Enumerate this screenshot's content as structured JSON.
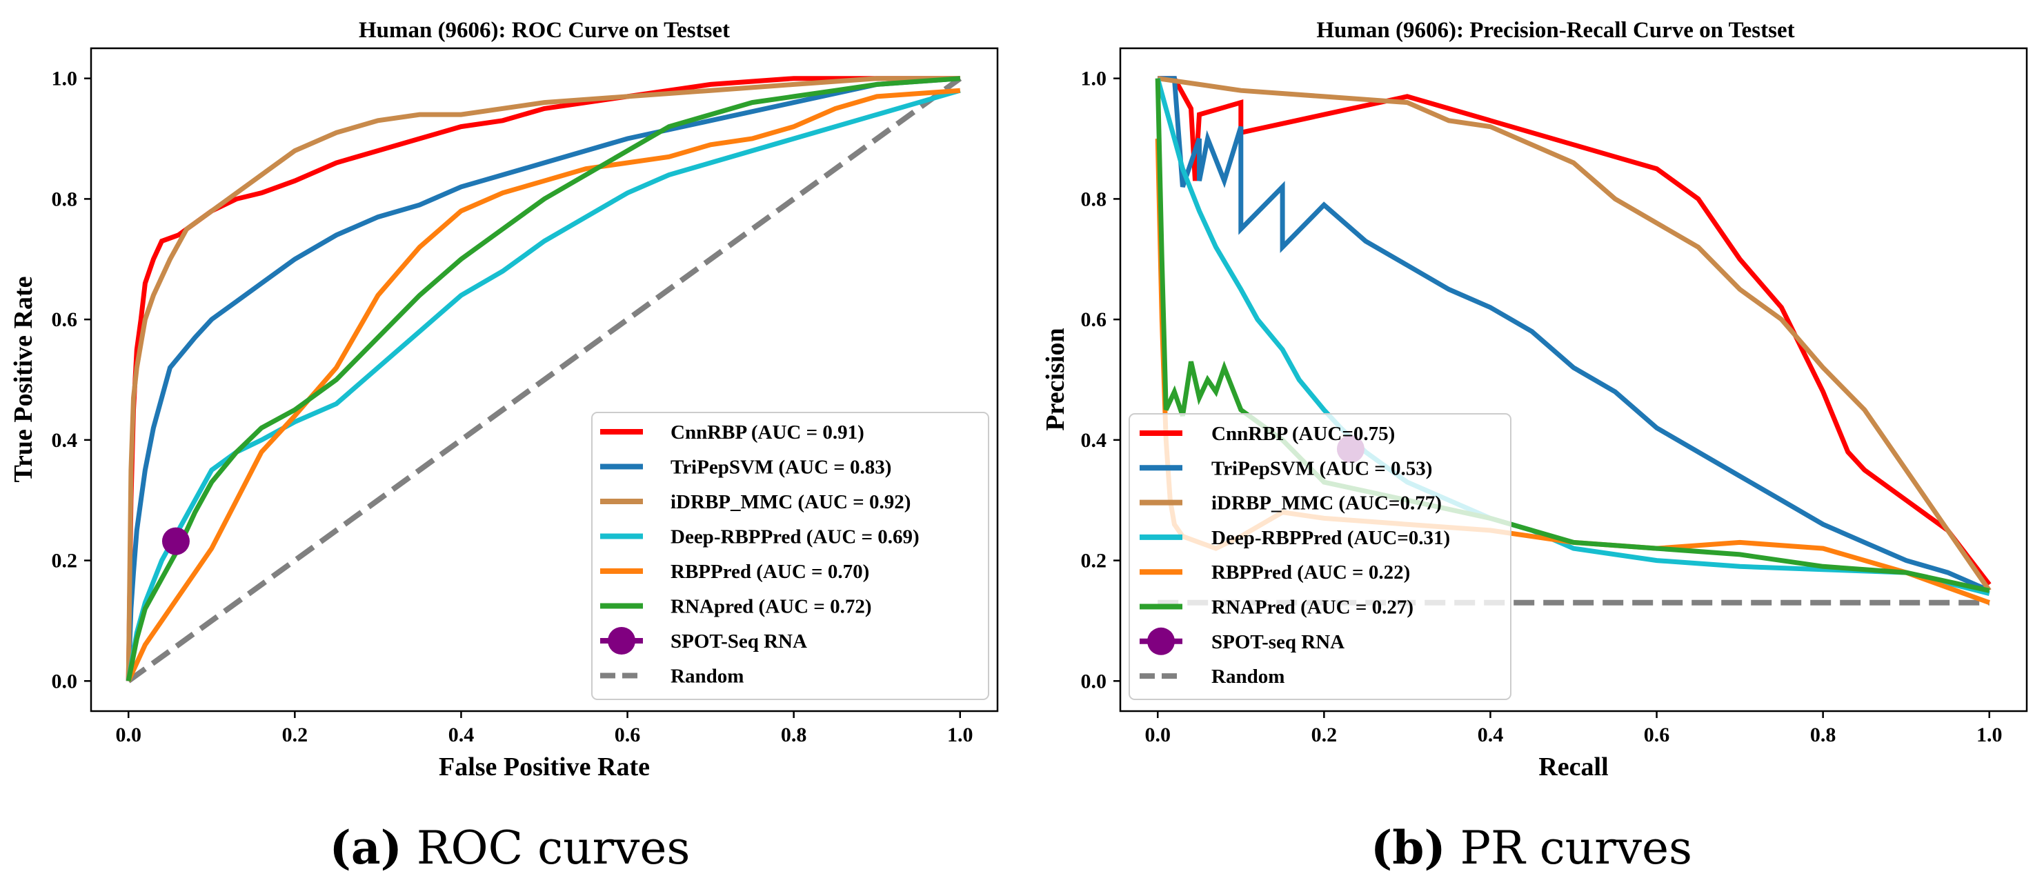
{
  "chart_data": [
    {
      "type": "line",
      "title": "Human (9606): ROC Curve on Testset",
      "xlabel": "False Positive Rate",
      "ylabel": "True Positive Rate",
      "xlim": [
        -0.045,
        1.045
      ],
      "ylim": [
        -0.05,
        1.05
      ],
      "xticks": [
        0.0,
        0.2,
        0.4,
        0.6,
        0.8,
        1.0
      ],
      "xtick_labels": [
        "0.0",
        "0.2",
        "0.4",
        "0.6",
        "0.8",
        "1.0"
      ],
      "yticks": [
        0.0,
        0.2,
        0.4,
        0.6,
        0.8,
        1.0
      ],
      "ytick_labels": [
        "0.0",
        "0.2",
        "0.4",
        "0.6",
        "0.8",
        "1.0"
      ],
      "legend_position": "lower-right",
      "caption": {
        "letter": "(a)",
        "text": " ROC curves"
      },
      "series": [
        {
          "name": "CnnRBP (AUC = 0.91)",
          "color": "#ff0000",
          "x": [
            0,
            0.003,
            0.006,
            0.01,
            0.015,
            0.02,
            0.03,
            0.04,
            0.06,
            0.08,
            0.1,
            0.13,
            0.16,
            0.2,
            0.25,
            0.3,
            0.35,
            0.4,
            0.45,
            0.5,
            0.6,
            0.7,
            0.8,
            0.85,
            0.9,
            1.0
          ],
          "y": [
            0,
            0.3,
            0.45,
            0.55,
            0.6,
            0.66,
            0.7,
            0.73,
            0.74,
            0.76,
            0.78,
            0.8,
            0.81,
            0.83,
            0.86,
            0.88,
            0.9,
            0.92,
            0.93,
            0.95,
            0.97,
            0.99,
            1.0,
            1.0,
            1.0,
            1.0
          ]
        },
        {
          "name": "TriPepSVM (AUC = 0.83)",
          "color": "#1f77b4",
          "x": [
            0,
            0.003,
            0.006,
            0.01,
            0.015,
            0.02,
            0.03,
            0.05,
            0.08,
            0.1,
            0.13,
            0.16,
            0.2,
            0.25,
            0.3,
            0.35,
            0.4,
            0.45,
            0.5,
            0.55,
            0.6,
            0.7,
            0.8,
            0.9,
            1.0
          ],
          "y": [
            0,
            0.12,
            0.18,
            0.25,
            0.3,
            0.35,
            0.42,
            0.52,
            0.57,
            0.6,
            0.63,
            0.66,
            0.7,
            0.74,
            0.77,
            0.79,
            0.82,
            0.84,
            0.86,
            0.88,
            0.9,
            0.93,
            0.96,
            0.99,
            1.0
          ]
        },
        {
          "name": "iDRBP_MMC (AUC = 0.92)",
          "color": "#c88a4b",
          "x": [
            0,
            0.003,
            0.006,
            0.01,
            0.015,
            0.02,
            0.03,
            0.05,
            0.07,
            0.1,
            0.13,
            0.16,
            0.2,
            0.25,
            0.3,
            0.35,
            0.4,
            0.5,
            0.6,
            0.7,
            0.8,
            0.9,
            1.0
          ],
          "y": [
            0,
            0.35,
            0.47,
            0.52,
            0.56,
            0.6,
            0.64,
            0.7,
            0.75,
            0.78,
            0.81,
            0.84,
            0.88,
            0.91,
            0.93,
            0.94,
            0.94,
            0.96,
            0.97,
            0.98,
            0.99,
            1.0,
            1.0
          ]
        },
        {
          "name": "Deep-RBPPred (AUC = 0.69)",
          "color": "#17becf",
          "x": [
            0,
            0.01,
            0.02,
            0.04,
            0.06,
            0.08,
            0.1,
            0.13,
            0.16,
            0.2,
            0.25,
            0.3,
            0.35,
            0.4,
            0.45,
            0.5,
            0.55,
            0.6,
            0.65,
            0.7,
            0.8,
            0.9,
            1.0
          ],
          "y": [
            0,
            0.08,
            0.13,
            0.2,
            0.25,
            0.3,
            0.35,
            0.38,
            0.4,
            0.43,
            0.46,
            0.52,
            0.58,
            0.64,
            0.68,
            0.73,
            0.77,
            0.81,
            0.84,
            0.86,
            0.9,
            0.94,
            0.98
          ]
        },
        {
          "name": "RBPPred (AUC = 0.70)",
          "color": "#ff7f0e",
          "x": [
            0,
            0.01,
            0.02,
            0.04,
            0.06,
            0.08,
            0.1,
            0.13,
            0.16,
            0.2,
            0.25,
            0.3,
            0.35,
            0.4,
            0.45,
            0.5,
            0.55,
            0.6,
            0.65,
            0.7,
            0.75,
            0.8,
            0.85,
            0.9,
            1.0
          ],
          "y": [
            0,
            0.03,
            0.06,
            0.1,
            0.14,
            0.18,
            0.22,
            0.3,
            0.38,
            0.44,
            0.52,
            0.64,
            0.72,
            0.78,
            0.81,
            0.83,
            0.85,
            0.86,
            0.87,
            0.89,
            0.9,
            0.92,
            0.95,
            0.97,
            0.98
          ]
        },
        {
          "name": "RNApred (AUC = 0.72)",
          "color": "#2ca02c",
          "x": [
            0,
            0.01,
            0.02,
            0.04,
            0.06,
            0.08,
            0.1,
            0.13,
            0.16,
            0.2,
            0.25,
            0.3,
            0.35,
            0.4,
            0.45,
            0.5,
            0.55,
            0.6,
            0.65,
            0.7,
            0.75,
            0.8,
            0.85,
            0.9,
            1.0
          ],
          "y": [
            0,
            0.07,
            0.12,
            0.17,
            0.22,
            0.28,
            0.33,
            0.38,
            0.42,
            0.45,
            0.5,
            0.57,
            0.64,
            0.7,
            0.75,
            0.8,
            0.84,
            0.88,
            0.92,
            0.94,
            0.96,
            0.97,
            0.98,
            0.99,
            1.0
          ]
        },
        {
          "name": "Random",
          "color": "#808080",
          "dashed": true,
          "x": [
            0,
            1
          ],
          "y": [
            0,
            1
          ]
        }
      ],
      "marker": {
        "name": "SPOT-Seq RNA",
        "color": "#800080",
        "x": 0.057,
        "y": 0.232
      }
    },
    {
      "type": "line",
      "title": "Human (9606): Precision-Recall Curve on Testset",
      "xlabel": "Recall",
      "ylabel": "Precision",
      "xlim": [
        -0.045,
        1.045
      ],
      "ylim": [
        -0.05,
        1.05
      ],
      "xticks": [
        0.0,
        0.2,
        0.4,
        0.6,
        0.8,
        1.0
      ],
      "xtick_labels": [
        "0.0",
        "0.2",
        "0.4",
        "0.6",
        "0.8",
        "1.0"
      ],
      "yticks": [
        0.0,
        0.2,
        0.4,
        0.6,
        0.8,
        1.0
      ],
      "ytick_labels": [
        "0.0",
        "0.2",
        "0.4",
        "0.6",
        "0.8",
        "1.0"
      ],
      "legend_position": "lower-left",
      "caption": {
        "letter": "(b)",
        "text": " PR curves"
      },
      "series": [
        {
          "name": "CnnRBP (AUC=0.75)",
          "color": "#ff0000",
          "x": [
            0,
            0.02,
            0.04,
            0.045,
            0.05,
            0.1,
            0.1,
            0.2,
            0.3,
            0.4,
            0.5,
            0.55,
            0.6,
            0.65,
            0.7,
            0.75,
            0.8,
            0.83,
            0.85,
            0.9,
            0.95,
            1.0
          ],
          "y": [
            1.0,
            1.0,
            0.95,
            0.83,
            0.94,
            0.96,
            0.91,
            0.94,
            0.97,
            0.93,
            0.89,
            0.87,
            0.85,
            0.8,
            0.7,
            0.62,
            0.48,
            0.38,
            0.35,
            0.3,
            0.25,
            0.16
          ]
        },
        {
          "name": "TriPepSVM (AUC = 0.53)",
          "color": "#1f77b4",
          "x": [
            0,
            0.02,
            0.03,
            0.05,
            0.05,
            0.06,
            0.08,
            0.1,
            0.1,
            0.15,
            0.15,
            0.2,
            0.25,
            0.3,
            0.35,
            0.4,
            0.45,
            0.5,
            0.55,
            0.6,
            0.65,
            0.7,
            0.75,
            0.8,
            0.85,
            0.9,
            0.95,
            1.0
          ],
          "y": [
            1.0,
            1.0,
            0.82,
            0.9,
            0.83,
            0.9,
            0.83,
            0.92,
            0.75,
            0.82,
            0.72,
            0.79,
            0.73,
            0.69,
            0.65,
            0.62,
            0.58,
            0.52,
            0.48,
            0.42,
            0.38,
            0.34,
            0.3,
            0.26,
            0.23,
            0.2,
            0.18,
            0.15
          ]
        },
        {
          "name": "iDRBP_MMC (AUC=0.77)",
          "color": "#c88a4b",
          "x": [
            0,
            0.05,
            0.1,
            0.2,
            0.3,
            0.35,
            0.4,
            0.45,
            0.5,
            0.55,
            0.6,
            0.65,
            0.7,
            0.75,
            0.8,
            0.85,
            0.9,
            0.95,
            1.0
          ],
          "y": [
            1.0,
            0.99,
            0.98,
            0.97,
            0.96,
            0.93,
            0.92,
            0.89,
            0.86,
            0.8,
            0.76,
            0.72,
            0.65,
            0.6,
            0.52,
            0.45,
            0.35,
            0.25,
            0.15
          ]
        },
        {
          "name": "Deep-RBPPred (AUC=0.31)",
          "color": "#17becf",
          "x": [
            0,
            0.01,
            0.02,
            0.03,
            0.05,
            0.07,
            0.1,
            0.12,
            0.15,
            0.17,
            0.2,
            0.22,
            0.25,
            0.3,
            0.35,
            0.4,
            0.45,
            0.5,
            0.55,
            0.6,
            0.7,
            0.8,
            0.9,
            1.0
          ],
          "y": [
            1.0,
            0.95,
            0.9,
            0.85,
            0.78,
            0.72,
            0.65,
            0.6,
            0.55,
            0.5,
            0.45,
            0.42,
            0.38,
            0.33,
            0.3,
            0.27,
            0.25,
            0.22,
            0.21,
            0.2,
            0.19,
            0.185,
            0.18,
            0.145
          ]
        },
        {
          "name": "RBPPred (AUC = 0.22)",
          "color": "#ff7f0e",
          "x": [
            0,
            0.005,
            0.01,
            0.015,
            0.02,
            0.03,
            0.05,
            0.07,
            0.1,
            0.15,
            0.2,
            0.3,
            0.4,
            0.5,
            0.6,
            0.7,
            0.8,
            0.9,
            1.0
          ],
          "y": [
            0.9,
            0.6,
            0.4,
            0.3,
            0.26,
            0.24,
            0.23,
            0.22,
            0.24,
            0.28,
            0.27,
            0.26,
            0.25,
            0.23,
            0.22,
            0.23,
            0.22,
            0.18,
            0.13
          ]
        },
        {
          "name": "RNAPred (AUC = 0.27)",
          "color": "#2ca02c",
          "x": [
            0,
            0.005,
            0.01,
            0.02,
            0.03,
            0.04,
            0.05,
            0.06,
            0.07,
            0.08,
            0.1,
            0.15,
            0.2,
            0.3,
            0.4,
            0.5,
            0.6,
            0.7,
            0.8,
            0.9,
            1.0
          ],
          "y": [
            1.0,
            0.7,
            0.45,
            0.48,
            0.44,
            0.53,
            0.47,
            0.5,
            0.48,
            0.52,
            0.45,
            0.4,
            0.33,
            0.3,
            0.27,
            0.23,
            0.22,
            0.21,
            0.19,
            0.18,
            0.15
          ]
        },
        {
          "name": "Random",
          "color": "#808080",
          "dashed": true,
          "x": [
            0,
            1
          ],
          "y": [
            0.13,
            0.13
          ]
        }
      ],
      "marker": {
        "name": "SPOT-seq RNA",
        "color": "#800080",
        "x": 0.232,
        "y": 0.385
      }
    }
  ]
}
